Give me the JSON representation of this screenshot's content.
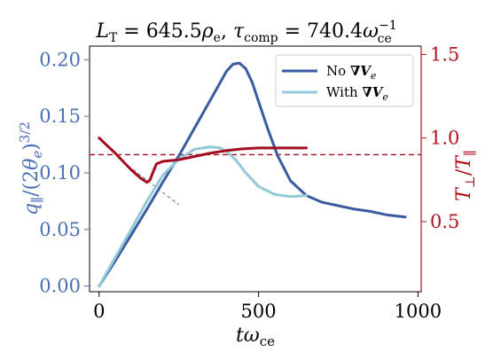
{
  "chart_data": {
    "type": "line",
    "title": "L_T = 645.5ρ_e, τ_comp = 740.4ω_ce^{-1}",
    "title_parts": {
      "L": "L",
      "T_sub": "T",
      "eq1": " = 645.5",
      "rho": "ρ",
      "e_sub": "e",
      "sep": ", ",
      "tau": "τ",
      "comp_sub": "comp",
      "eq2": " = 740.4",
      "omega": "ω",
      "sup": "−1",
      "ce_sub": "ce"
    },
    "xlabel": "tω_ce",
    "xlabel_parts": {
      "t": "t",
      "omega": "ω",
      "ce_sub": "ce"
    },
    "ylabel_left": "q_∥/(2θ_e)^{3/2}",
    "ylabel_left_parts": {
      "q": "q",
      "par_sub": "∥",
      "mid": "/(2",
      "theta": "θ",
      "e_sub": "e",
      "close": ")",
      "sup": "3/2"
    },
    "ylabel_right": "T_⊥/T_∥",
    "ylabel_right_parts": {
      "T1": "T",
      "perp_sub": "⊥",
      "slash": "/",
      "T2": "T",
      "par_sub": "∥"
    },
    "xlim": [
      -30,
      1010
    ],
    "ylim_left": [
      -0.005,
      0.212
    ],
    "ylim_right": [
      0.08,
      1.55
    ],
    "xticks": [
      0,
      500,
      1000
    ],
    "xtick_labels": [
      "0",
      "500",
      "1000"
    ],
    "yticks_left": [
      0.0,
      0.05,
      0.1,
      0.15,
      0.2
    ],
    "ytick_labels_left": [
      "0.00",
      "0.05",
      "0.10",
      "0.15",
      "0.20"
    ],
    "yticks_right": [
      0.5,
      1.0,
      1.5
    ],
    "ytick_labels_right": [
      "0.5",
      "1.0",
      "1.5"
    ],
    "legend_position": "top-right",
    "colors": {
      "no_grad": "#3a5ba0",
      "with_grad": "#92c9d8",
      "anisotropy": "#a30d1f",
      "reference_dashed": "#a30d1f",
      "fit_dashed": "#888888",
      "left_axis": "#4a6fb5",
      "right_axis": "#b0141f"
    },
    "series": [
      {
        "name": "No ∇V_e",
        "name_parts": {
          "prefix": "No ",
          "nabla": "∇",
          "V": "V",
          "sub": "e"
        },
        "axis": "left",
        "x": [
          0,
          50,
          100,
          150,
          200,
          250,
          300,
          350,
          400,
          420,
          440,
          460,
          480,
          500,
          530,
          560,
          600,
          650,
          700,
          750,
          800,
          850,
          900,
          960
        ],
        "y": [
          0.0,
          0.022,
          0.045,
          0.068,
          0.092,
          0.115,
          0.14,
          0.165,
          0.19,
          0.196,
          0.197,
          0.192,
          0.18,
          0.163,
          0.138,
          0.115,
          0.093,
          0.08,
          0.074,
          0.071,
          0.068,
          0.066,
          0.063,
          0.061
        ]
      },
      {
        "name": "With ∇V_e",
        "name_parts": {
          "prefix": "With ",
          "nabla": "∇",
          "V": "V",
          "sub": "e"
        },
        "axis": "left",
        "x": [
          0,
          50,
          100,
          150,
          200,
          250,
          300,
          350,
          380,
          400,
          430,
          460,
          500,
          550,
          600,
          650
        ],
        "y": [
          0.0,
          0.025,
          0.05,
          0.075,
          0.098,
          0.112,
          0.121,
          0.123,
          0.122,
          0.119,
          0.111,
          0.1,
          0.088,
          0.081,
          0.079,
          0.08
        ]
      },
      {
        "name": "",
        "axis": "right",
        "x": [
          0,
          50,
          100,
          130,
          150,
          160,
          170,
          180,
          200,
          250,
          300,
          350,
          400,
          450,
          500,
          550,
          600,
          650
        ],
        "y": [
          1.0,
          0.91,
          0.81,
          0.76,
          0.735,
          0.75,
          0.8,
          0.845,
          0.86,
          0.87,
          0.89,
          0.91,
          0.925,
          0.935,
          0.94,
          0.94,
          0.94,
          0.94
        ]
      }
    ],
    "reference_lines": [
      {
        "axis": "right",
        "y": 0.9,
        "style": "dashed"
      }
    ],
    "fit_line": {
      "axis": "right",
      "x": [
        60,
        250
      ],
      "y": [
        0.88,
        0.6
      ],
      "style": "dashed"
    }
  }
}
